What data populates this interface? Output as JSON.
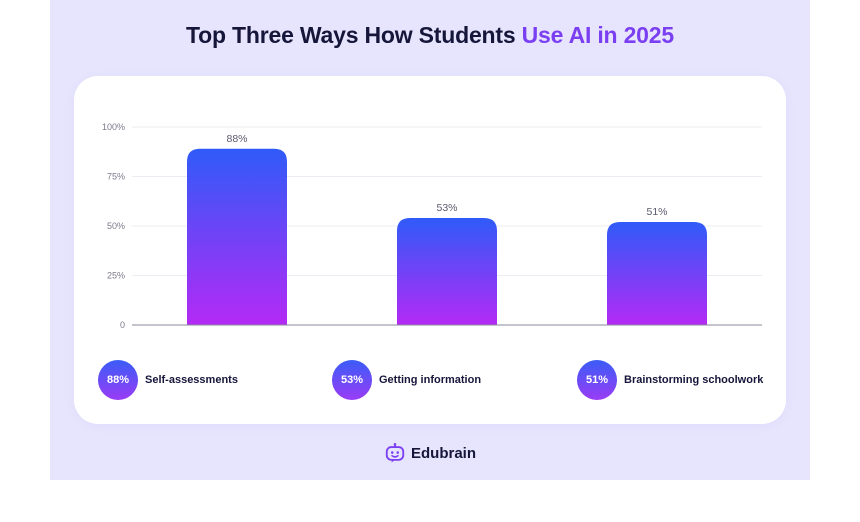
{
  "header": {
    "title_main": "Top Three Ways How Students",
    "title_accent": "Use AI in 2025"
  },
  "colors": {
    "background": "#e7e5fd",
    "accent": "#7b3ff2",
    "bar_top": "#2f5bf8",
    "bar_bottom": "#b42af5",
    "text": "#15163a"
  },
  "chart_data": {
    "type": "bar",
    "categories": [
      "Self-assessments",
      "Getting information",
      "Brainstorming schoolwork"
    ],
    "values": [
      88,
      53,
      51
    ],
    "data_labels": [
      "88%",
      "53%",
      "51%"
    ],
    "y_ticks": [
      "0",
      "25%",
      "50%",
      "75%",
      "100%"
    ],
    "y_tick_values": [
      0,
      25,
      50,
      75,
      100
    ],
    "ylim": [
      0,
      100
    ],
    "grid": true,
    "legend_position": "bottom"
  },
  "legend": [
    {
      "badge": "88%",
      "label": "Self-assessments"
    },
    {
      "badge": "53%",
      "label": "Getting information"
    },
    {
      "badge": "51%",
      "label": "Brainstorming schoolwork"
    }
  ],
  "brand": {
    "name": "Edubrain",
    "icon": "robot-face-icon"
  }
}
